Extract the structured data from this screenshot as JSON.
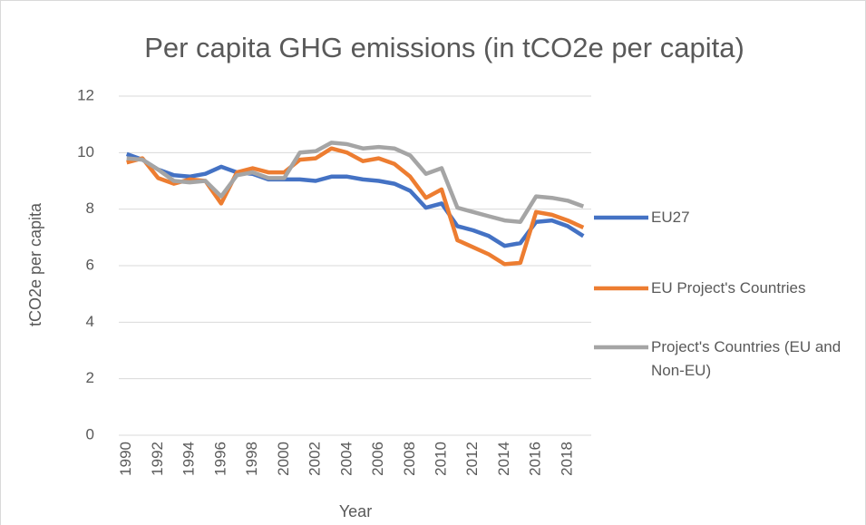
{
  "chart_data": {
    "type": "line",
    "title": "Per capita GHG emissions (in tCO2e per capita)",
    "x_label": "Year",
    "y_label": "tCO2e per capita",
    "x": [
      1990,
      1991,
      1992,
      1993,
      1994,
      1995,
      1996,
      1997,
      1998,
      1999,
      2000,
      2001,
      2002,
      2003,
      2004,
      2005,
      2006,
      2007,
      2008,
      2009,
      2010,
      2011,
      2012,
      2013,
      2014,
      2015,
      2016,
      2017,
      2018,
      2019
    ],
    "xlim": [
      1989.5,
      2019.5
    ],
    "xticks": [
      1990,
      1992,
      1994,
      1996,
      1998,
      2000,
      2002,
      2004,
      2006,
      2008,
      2010,
      2012,
      2014,
      2016,
      2018
    ],
    "ylim": [
      0,
      12
    ],
    "yticks": [
      0,
      2,
      4,
      6,
      8,
      10,
      12
    ],
    "grid": true,
    "legend": "right",
    "series": [
      {
        "name": "EU27",
        "color": "#4472c4",
        "values": [
          9.95,
          9.75,
          9.4,
          9.2,
          9.15,
          9.25,
          9.5,
          9.3,
          9.25,
          9.05,
          9.05,
          9.05,
          9.0,
          9.15,
          9.15,
          9.05,
          9.0,
          8.9,
          8.65,
          8.05,
          8.2,
          7.4,
          7.25,
          7.05,
          6.7,
          6.8,
          7.55,
          7.6,
          7.4,
          7.05
        ]
      },
      {
        "name": "EU Project's Countries",
        "color": "#ed7d31",
        "values": [
          9.65,
          9.8,
          9.1,
          8.9,
          9.05,
          9.0,
          8.2,
          9.3,
          9.45,
          9.3,
          9.3,
          9.75,
          9.8,
          10.15,
          10.0,
          9.7,
          9.8,
          9.6,
          9.15,
          8.4,
          8.7,
          6.9,
          6.65,
          6.4,
          6.05,
          6.1,
          7.9,
          7.8,
          7.6,
          7.35
        ]
      },
      {
        "name": "Project's Countries (EU and Non-EU)",
        "color": "#a5a5a5",
        "values": [
          9.8,
          9.75,
          9.4,
          9.0,
          8.95,
          9.0,
          8.45,
          9.2,
          9.3,
          9.1,
          9.1,
          10.0,
          10.05,
          10.35,
          10.3,
          10.15,
          10.2,
          10.15,
          9.9,
          9.25,
          9.45,
          8.05,
          7.9,
          7.75,
          7.6,
          7.55,
          8.45,
          8.4,
          8.3,
          8.1
        ]
      }
    ]
  }
}
